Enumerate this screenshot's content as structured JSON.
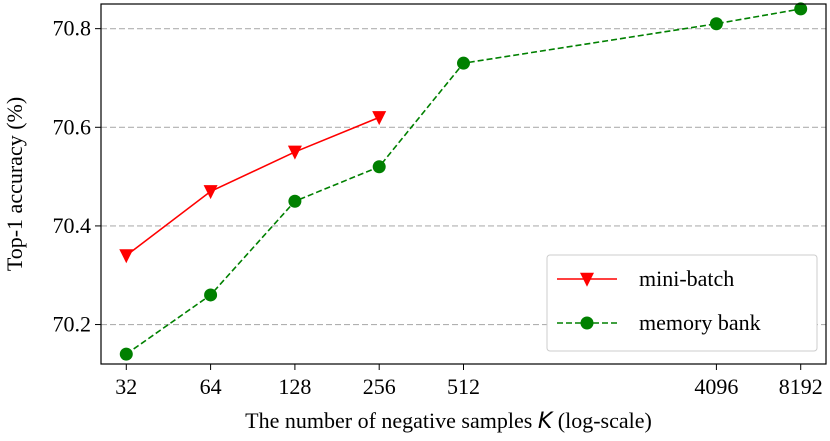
{
  "chart_data": {
    "type": "line",
    "title": "",
    "xlabel_main": "The number of negative samples ",
    "xlabel_var": "K",
    "xlabel_tail": " (log-scale)",
    "ylabel": "Top-1 accuracy (%)",
    "x_scale": "log2",
    "xticks": [
      32,
      64,
      128,
      256,
      512,
      4096,
      8192
    ],
    "xtick_labels": [
      "32",
      "64",
      "128",
      "256",
      "512",
      "4096",
      "8192"
    ],
    "yticks": [
      70.2,
      70.4,
      70.6,
      70.8
    ],
    "ytick_labels": [
      "70.2",
      "70.4",
      "70.6",
      "70.8"
    ],
    "ylim": [
      70.12,
      70.85
    ],
    "grid": "horizontal-dashed",
    "legend_position": "bottom-right",
    "series": [
      {
        "name": "mini-batch",
        "color": "#ff0000",
        "line_style": "solid",
        "marker": "triangle-down",
        "x": [
          32,
          64,
          128,
          256
        ],
        "y": [
          70.34,
          70.47,
          70.55,
          70.62
        ]
      },
      {
        "name": "memory bank",
        "color": "#008000",
        "line_style": "dashed",
        "marker": "circle",
        "x": [
          32,
          64,
          128,
          256,
          512,
          4096,
          8192
        ],
        "y": [
          70.14,
          70.26,
          70.45,
          70.52,
          70.73,
          70.81,
          70.84
        ]
      }
    ]
  }
}
